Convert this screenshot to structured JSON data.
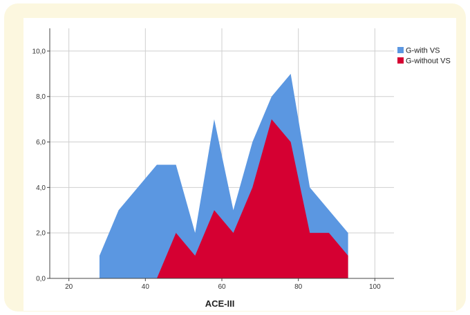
{
  "chart_data": {
    "type": "area",
    "xlabel": "ACE-III",
    "ylabel": "",
    "xlim": [
      15,
      105
    ],
    "ylim": [
      0,
      11
    ],
    "x_ticks": [
      20,
      40,
      60,
      80,
      100
    ],
    "x_tick_labels": [
      "20",
      "40",
      "60",
      "80",
      "100"
    ],
    "y_ticks": [
      0,
      2,
      4,
      6,
      8,
      10
    ],
    "y_tick_labels": [
      "0,0",
      "2,0",
      "4,0",
      "6,0",
      "8,0",
      "10,0"
    ],
    "grid": true,
    "legend_position": "top-right",
    "series": [
      {
        "name": "G-with VS",
        "color": "#5b97e1",
        "x": [
          28,
          33,
          38,
          43,
          48,
          53,
          58,
          63,
          68,
          73,
          78,
          83,
          88,
          93
        ],
        "values": [
          1,
          3,
          4,
          5,
          5,
          2,
          7,
          3,
          6,
          8,
          9,
          4,
          3,
          2
        ]
      },
      {
        "name": "G-without VS",
        "color": "#d50032",
        "x": [
          43,
          48,
          53,
          58,
          63,
          68,
          73,
          78,
          83,
          88,
          93
        ],
        "values": [
          0,
          2,
          1,
          3,
          2,
          4,
          7,
          6,
          2,
          2,
          1
        ]
      }
    ]
  }
}
